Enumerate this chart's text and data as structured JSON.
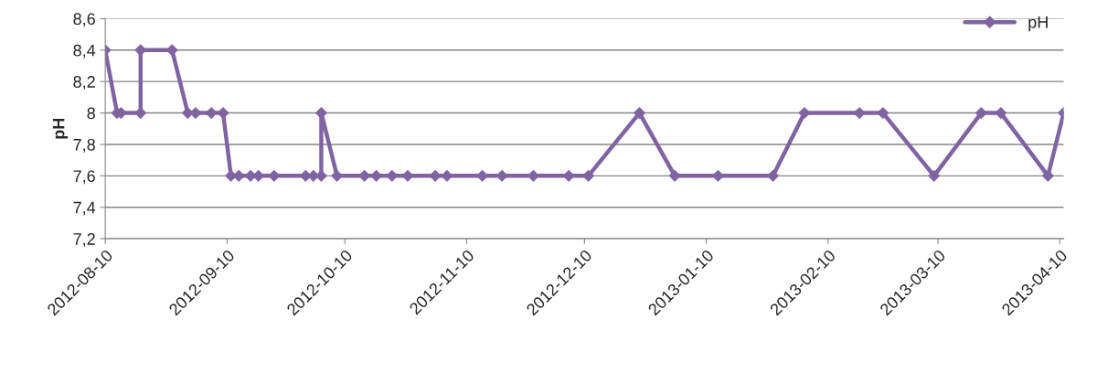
{
  "chart_data": {
    "type": "line",
    "ylabel": "pH",
    "x": [
      "2012-08-10",
      "2012-08-13",
      "2012-08-14",
      "2012-08-19",
      "2012-08-19",
      "2012-08-27",
      "2012-08-31",
      "2012-09-02",
      "2012-09-06",
      "2012-09-09",
      "2012-09-11",
      "2012-09-13",
      "2012-09-16",
      "2012-09-18",
      "2012-09-22",
      "2012-09-30",
      "2012-10-02",
      "2012-10-04",
      "2012-10-04",
      "2012-10-08",
      "2012-10-15",
      "2012-10-18",
      "2012-10-22",
      "2012-10-26",
      "2012-11-02",
      "2012-11-05",
      "2012-11-14",
      "2012-11-19",
      "2012-11-27",
      "2012-12-06",
      "2012-12-11",
      "2012-12-24",
      "2013-01-02",
      "2013-01-13",
      "2013-01-27",
      "2013-02-04",
      "2013-02-18",
      "2013-02-24",
      "2013-03-09",
      "2013-03-21",
      "2013-03-26",
      "2013-04-07",
      "2013-04-11"
    ],
    "series": [
      {
        "name": "pH",
        "color": "#8064a2",
        "values": [
          8.4,
          8.0,
          8.0,
          8.0,
          8.4,
          8.4,
          8.0,
          8.0,
          8.0,
          8.0,
          7.6,
          7.6,
          7.6,
          7.6,
          7.6,
          7.6,
          7.6,
          7.6,
          8.0,
          7.6,
          7.6,
          7.6,
          7.6,
          7.6,
          7.6,
          7.6,
          7.6,
          7.6,
          7.6,
          7.6,
          7.6,
          8.0,
          7.6,
          7.6,
          7.6,
          8.0,
          8.0,
          8.0,
          7.6,
          8.0,
          8.0,
          7.6,
          8.0
        ]
      }
    ],
    "xlim": [
      "2012-08-10",
      "2013-04-11"
    ],
    "xticks": [
      "2012-08-10",
      "2012-09-10",
      "2012-10-10",
      "2012-11-10",
      "2012-12-10",
      "2013-01-10",
      "2013-02-10",
      "2013-03-10",
      "2013-04-10"
    ],
    "ylim": [
      7.2,
      8.6
    ],
    "yticks": [
      {
        "value": 7.2,
        "label": "7,2"
      },
      {
        "value": 7.4,
        "label": "7,4"
      },
      {
        "value": 7.6,
        "label": "7,6"
      },
      {
        "value": 7.8,
        "label": "7,8"
      },
      {
        "value": 8,
        "label": "8"
      },
      {
        "value": 8.2,
        "label": "8,2"
      },
      {
        "value": 8.4,
        "label": "8,4"
      },
      {
        "value": 8.6,
        "label": "8,6"
      }
    ],
    "grid": "y",
    "legend": "top right",
    "marker": "diamond",
    "line_style": "solid"
  }
}
